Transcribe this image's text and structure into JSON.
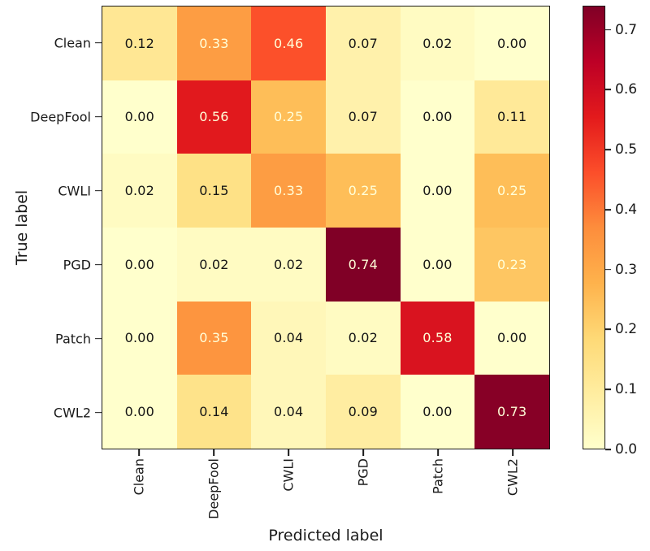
{
  "chart_data": {
    "type": "heatmap",
    "title": "",
    "xlabel": "Predicted label",
    "ylabel": "True label",
    "x_categories": [
      "Clean",
      "DeepFool",
      "CWLI",
      "PGD",
      "Patch",
      "CWL2"
    ],
    "y_categories": [
      "Clean",
      "DeepFool",
      "CWLI",
      "PGD",
      "Patch",
      "CWL2"
    ],
    "matrix": [
      [
        0.12,
        0.33,
        0.46,
        0.07,
        0.02,
        0.0
      ],
      [
        0.0,
        0.56,
        0.25,
        0.07,
        0.0,
        0.11
      ],
      [
        0.02,
        0.15,
        0.33,
        0.25,
        0.0,
        0.25
      ],
      [
        0.0,
        0.02,
        0.02,
        0.74,
        0.0,
        0.23
      ],
      [
        0.0,
        0.35,
        0.04,
        0.02,
        0.58,
        0.0
      ],
      [
        0.0,
        0.14,
        0.04,
        0.09,
        0.0,
        0.73
      ]
    ],
    "vmin": 0.0,
    "vmax": 0.74,
    "value_decimals": 2,
    "colorbar_ticks": [
      0.0,
      0.1,
      0.2,
      0.3,
      0.4,
      0.5,
      0.6,
      0.7
    ],
    "colorbar_tick_decimals": 1,
    "colormap_name": "YlOrRd",
    "colormap_anchors": [
      "#ffffcc",
      "#ffeda0",
      "#fed976",
      "#feb24c",
      "#fd8d3c",
      "#fc4e2a",
      "#e31a1c",
      "#bd0026",
      "#800026"
    ],
    "cell_text_dark": "#151515",
    "cell_text_light": "#ffffd9",
    "light_text_threshold": 0.2,
    "axis_color": "#1a1a1a",
    "legend_position": "right",
    "grid": false
  }
}
